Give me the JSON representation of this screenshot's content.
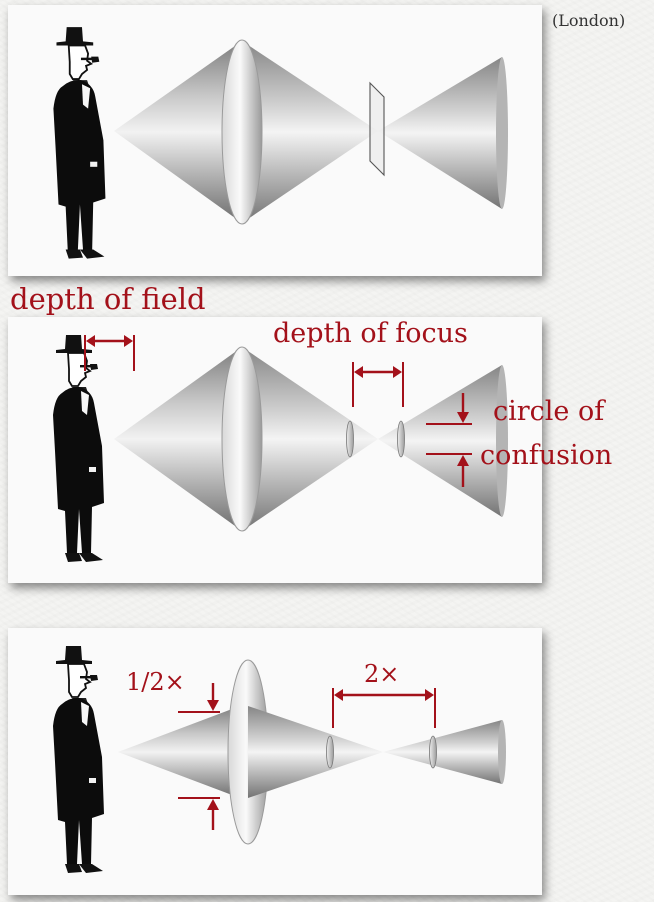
{
  "credit": "(London)",
  "labels": {
    "depth_of_field": "depth of field",
    "depth_of_focus": "depth of focus",
    "circle_of": "circle of",
    "confusion": "confusion",
    "half": "1/2×",
    "double": "2×"
  },
  "colors": {
    "annotation": "#a3111a",
    "panel": "#fafafa",
    "background": "#f4f4f2"
  }
}
